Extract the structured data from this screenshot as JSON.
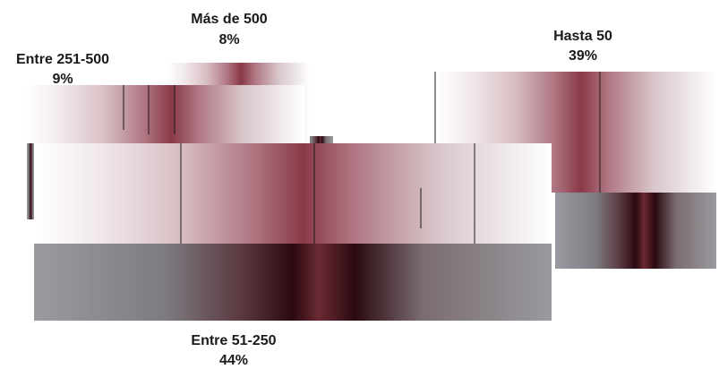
{
  "chart_data": {
    "type": "pie",
    "title": "",
    "slices": [
      {
        "label": "Hasta 50",
        "value_label": "39%",
        "value": 39
      },
      {
        "label": "Entre 51-250",
        "value_label": "44%",
        "value": 44
      },
      {
        "label": "Entre 251-500",
        "value_label": "9%",
        "value": 9
      },
      {
        "label": "Más de 500",
        "value_label": "8%",
        "value": 8
      }
    ],
    "style": "3d-exploded",
    "colors": {
      "highlight": "#ffffff",
      "mid": "#c8a0a8",
      "deep": "#8a3a48",
      "dark": "#2a0a10",
      "side": "#8c8c90"
    }
  }
}
